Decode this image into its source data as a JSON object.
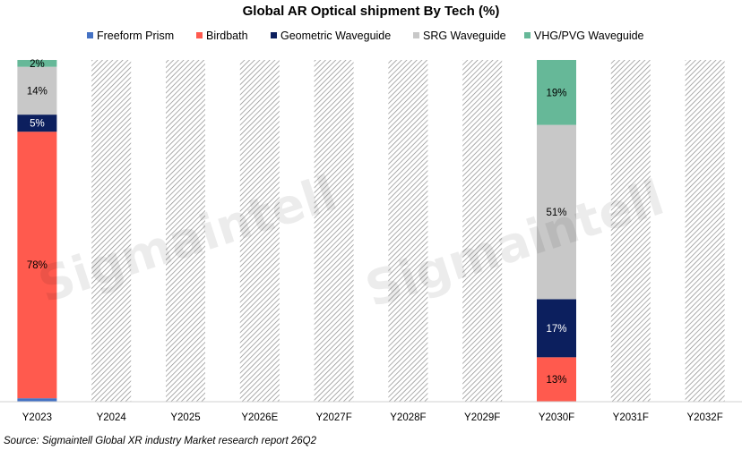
{
  "chart_data": {
    "type": "bar",
    "stacked": true,
    "title": "Global AR Optical shipment By Tech (%)",
    "categories": [
      "Y2023",
      "Y2024",
      "Y2025",
      "Y2026E",
      "Y2027F",
      "Y2028F",
      "Y2029F",
      "Y2030F",
      "Y2031F",
      "Y2032F"
    ],
    "ylim": [
      0,
      100
    ],
    "grid": false,
    "legend_position": "top",
    "series": [
      {
        "name": "Freeform Prism",
        "color": "#4472C4",
        "values": [
          1,
          null,
          null,
          null,
          null,
          null,
          null,
          0,
          null,
          null
        ],
        "labels": [
          "",
          "",
          "",
          "",
          "",
          "",
          "",
          "",
          "",
          ""
        ]
      },
      {
        "name": "Birdbath",
        "color": "#FF5A4E",
        "values": [
          78,
          null,
          null,
          null,
          null,
          null,
          null,
          13,
          null,
          null
        ],
        "labels": [
          "78%",
          "",
          "",
          "",
          "",
          "",
          "",
          "13%",
          "",
          ""
        ]
      },
      {
        "name": "Geometric Waveguide",
        "color": "#0C1F5E",
        "values": [
          5,
          null,
          null,
          null,
          null,
          null,
          null,
          17,
          null,
          null
        ],
        "labels": [
          "5%",
          "",
          "",
          "",
          "",
          "",
          "",
          "17%",
          "",
          ""
        ]
      },
      {
        "name": "SRG Waveguide",
        "color": "#C8C8C8",
        "values": [
          14,
          null,
          null,
          null,
          null,
          null,
          null,
          51,
          null,
          null
        ],
        "labels": [
          "14%",
          "",
          "",
          "",
          "",
          "",
          "",
          "51%",
          "",
          ""
        ]
      },
      {
        "name": "VHG/PVG Waveguide",
        "color": "#66B898",
        "values": [
          2,
          null,
          null,
          null,
          null,
          null,
          null,
          19,
          null,
          null
        ],
        "labels": [
          "2%",
          "",
          "",
          "",
          "",
          "",
          "",
          "19%",
          "",
          ""
        ]
      }
    ],
    "hidden_categories": [
      "Y2024",
      "Y2025",
      "Y2026E",
      "Y2027F",
      "Y2028F",
      "Y2029F",
      "Y2031F",
      "Y2032F"
    ],
    "hidden_fill": "hatched",
    "source": "Source: Sigmaintell  Global XR industry Market research report  26Q2",
    "watermark": "Sigmaintell"
  }
}
